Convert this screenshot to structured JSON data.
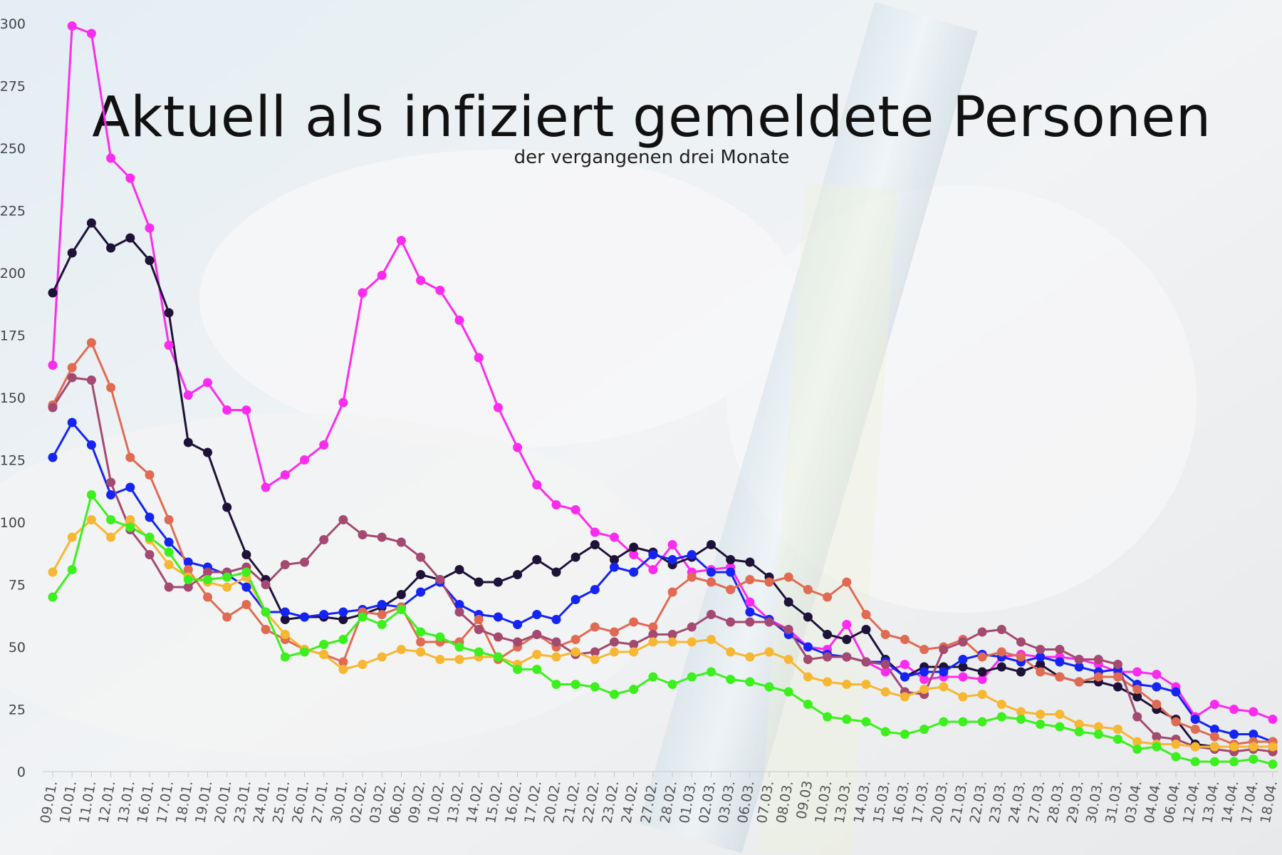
{
  "chart_data": {
    "type": "line",
    "title": "Aktuell als infiziert gemeldete Personen",
    "subtitle": "der vergangenen drei Monate",
    "ylim": [
      0,
      300
    ],
    "yticks": [
      0,
      25,
      50,
      75,
      100,
      125,
      150,
      175,
      200,
      225,
      250,
      275,
      300
    ],
    "grid": false,
    "legend": "none",
    "x": [
      "09.01.",
      "10.01.",
      "11.01.",
      "12.01.",
      "13.01.",
      "16.01.",
      "17.01.",
      "18.01.",
      "19.01.",
      "20.01.",
      "23.01.",
      "24.01.",
      "25.01.",
      "26.01.",
      "27.01.",
      "30.01.",
      "02.02.",
      "03.02.",
      "06.02.",
      "09.02.",
      "10.02.",
      "13.02.",
      "14.02.",
      "15.02.",
      "16.02.",
      "17.02.",
      "20.02.",
      "21.02.",
      "22.02.",
      "23.02.",
      "24.02.",
      "27.02.",
      "28.02.",
      "01.03.",
      "02.03.",
      "03.03.",
      "06.03.",
      "07.03.",
      "08.03.",
      "09.03",
      "10.03.",
      "13.03.",
      "14.03.",
      "15.03.",
      "16.03.",
      "17.03.",
      "20.03.",
      "21.03.",
      "22.03.",
      "23.03.",
      "24.03.",
      "27.03.",
      "28.03.",
      "29.03.",
      "30.03.",
      "31.03.",
      "03.04.",
      "04.04.",
      "06.04.",
      "12.04.",
      "13.04.",
      "14.04.",
      "17.04.",
      "18.04."
    ],
    "series": [
      {
        "color": "#ff2cf0",
        "values": [
          163,
          299,
          296,
          246,
          238,
          218,
          171,
          151,
          156,
          145,
          145,
          114,
          119,
          125,
          131,
          148,
          192,
          199,
          213,
          197,
          193,
          181,
          166,
          146,
          130,
          115,
          107,
          105,
          96,
          94,
          87,
          81,
          91,
          80,
          81,
          82,
          68,
          61,
          57,
          50,
          49,
          59,
          44,
          40,
          43,
          37,
          38,
          38,
          37,
          46,
          47,
          46,
          46,
          45,
          43,
          40,
          40,
          39,
          34,
          22,
          27,
          25,
          24,
          21
        ]
      },
      {
        "color": "#1e1238",
        "values": [
          192,
          208,
          220,
          210,
          214,
          205,
          184,
          132,
          128,
          106,
          87,
          77,
          61,
          62,
          62,
          61,
          63,
          66,
          71,
          79,
          77,
          81,
          76,
          76,
          79,
          85,
          80,
          86,
          91,
          85,
          90,
          88,
          83,
          86,
          91,
          85,
          84,
          78,
          68,
          62,
          55,
          53,
          57,
          45,
          38,
          42,
          42,
          42,
          40,
          42,
          40,
          43,
          38,
          36,
          36,
          34,
          30,
          25,
          21,
          11,
          10,
          10,
          10,
          10
        ]
      },
      {
        "color": "#1424f5",
        "values": [
          126,
          140,
          131,
          111,
          114,
          102,
          92,
          84,
          82,
          79,
          74,
          64,
          64,
          62,
          63,
          64,
          65,
          67,
          66,
          72,
          76,
          67,
          63,
          62,
          59,
          63,
          61,
          69,
          73,
          82,
          80,
          87,
          85,
          87,
          80,
          80,
          64,
          61,
          55,
          50,
          47,
          46,
          44,
          44,
          38,
          40,
          40,
          45,
          47,
          46,
          44,
          46,
          44,
          42,
          40,
          41,
          35,
          34,
          32,
          21,
          17,
          15,
          15,
          12
        ]
      },
      {
        "color": "#e06a52",
        "values": [
          147,
          162,
          172,
          154,
          126,
          119,
          101,
          81,
          70,
          62,
          67,
          57,
          53,
          49,
          47,
          44,
          64,
          63,
          66,
          52,
          52,
          52,
          61,
          45,
          50,
          55,
          50,
          53,
          58,
          56,
          60,
          58,
          72,
          78,
          76,
          73,
          77,
          76,
          78,
          73,
          70,
          76,
          63,
          55,
          53,
          49,
          50,
          53,
          46,
          48,
          46,
          40,
          38,
          36,
          38,
          38,
          33,
          27,
          20,
          17,
          14,
          11,
          12,
          12
        ]
      },
      {
        "color": "#a4496f",
        "values": [
          146,
          158,
          157,
          116,
          97,
          87,
          74,
          74,
          80,
          80,
          82,
          75,
          83,
          84,
          93,
          101,
          95,
          94,
          92,
          86,
          77,
          64,
          57,
          54,
          52,
          55,
          52,
          47,
          48,
          52,
          51,
          55,
          55,
          58,
          63,
          60,
          60,
          60,
          57,
          45,
          46,
          46,
          44,
          43,
          32,
          31,
          49,
          52,
          56,
          57,
          52,
          49,
          49,
          45,
          45,
          43,
          22,
          14,
          13,
          10,
          9,
          8,
          9,
          8
        ]
      },
      {
        "color": "#f7b733",
        "values": [
          80,
          94,
          101,
          94,
          101,
          93,
          83,
          78,
          76,
          74,
          78,
          64,
          55,
          49,
          47,
          41,
          43,
          46,
          49,
          48,
          45,
          45,
          46,
          46,
          43,
          47,
          46,
          48,
          45,
          48,
          48,
          52,
          52,
          52,
          53,
          48,
          46,
          48,
          45,
          38,
          36,
          35,
          35,
          32,
          30,
          33,
          34,
          30,
          31,
          27,
          24,
          23,
          23,
          19,
          18,
          17,
          12,
          11,
          11,
          10,
          10,
          10,
          10,
          10
        ]
      },
      {
        "color": "#3cf01e",
        "values": [
          70,
          81,
          111,
          101,
          98,
          94,
          88,
          77,
          77,
          78,
          80,
          64,
          46,
          48,
          51,
          53,
          62,
          59,
          65,
          56,
          54,
          50,
          48,
          46,
          41,
          41,
          35,
          35,
          34,
          31,
          33,
          38,
          35,
          38,
          40,
          37,
          36,
          34,
          32,
          27,
          22,
          21,
          20,
          16,
          15,
          17,
          20,
          20,
          20,
          22,
          21,
          19,
          18,
          16,
          15,
          13,
          9,
          10,
          6,
          4,
          4,
          4,
          5,
          3
        ]
      }
    ]
  }
}
